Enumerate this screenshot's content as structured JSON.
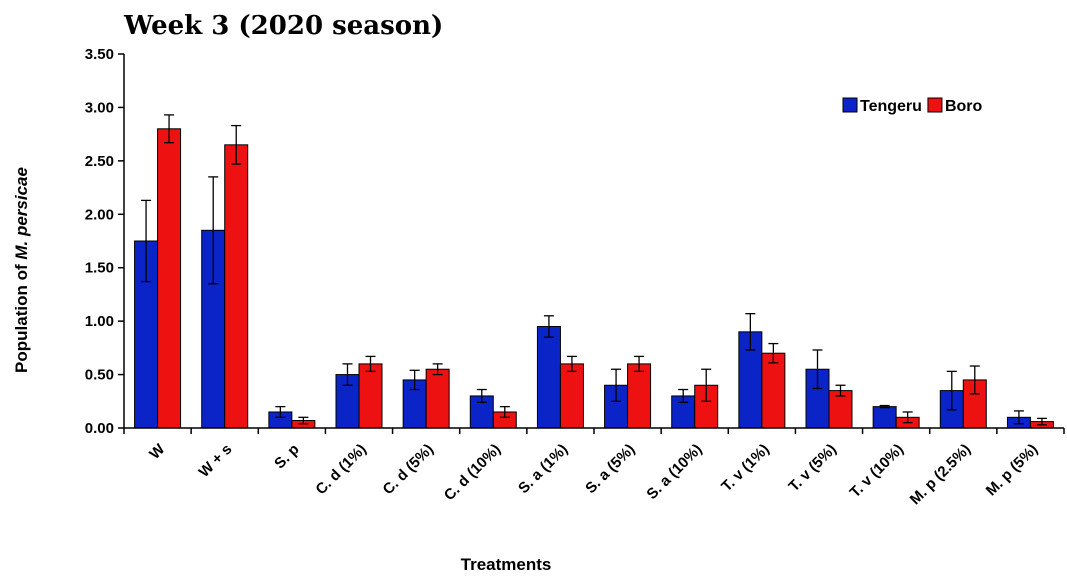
{
  "chart_data": {
    "type": "bar",
    "title": "Week 3 (2020 season)",
    "xlabel": "Treatments",
    "ylabel_prefix": "Population of ",
    "ylabel_italic": "M. persicae",
    "ylim": [
      0,
      3.5
    ],
    "yticks": [
      "0.00",
      "0.50",
      "1.00",
      "1.50",
      "2.00",
      "2.50",
      "3.00",
      "3.50"
    ],
    "ytick_values": [
      0,
      0.5,
      1,
      1.5,
      2,
      2.5,
      3,
      3.5
    ],
    "categories": [
      "W",
      "W + s",
      "S. p",
      "C. d (1%)",
      "C. d (5%)",
      "C. d (10%)",
      "S. a (1%)",
      "S. a (5%)",
      "S. a (10%)",
      "T. v (1%)",
      "T. v (5%)",
      "T. v (10%)",
      "M. p (2.5%)",
      "M. p (5%)"
    ],
    "series": [
      {
        "name": "Tengeru",
        "color": "#0b24c8",
        "values": [
          1.75,
          1.85,
          0.15,
          0.5,
          0.45,
          0.3,
          0.95,
          0.4,
          0.3,
          0.9,
          0.55,
          0.2,
          0.35,
          0.1
        ],
        "errors": [
          0.38,
          0.5,
          0.05,
          0.1,
          0.09,
          0.06,
          0.1,
          0.15,
          0.06,
          0.17,
          0.18,
          0.01,
          0.18,
          0.06
        ]
      },
      {
        "name": "Boro",
        "color": "#ee1111",
        "values": [
          2.8,
          2.65,
          0.07,
          0.6,
          0.55,
          0.15,
          0.6,
          0.6,
          0.4,
          0.7,
          0.35,
          0.1,
          0.45,
          0.06
        ],
        "errors": [
          0.13,
          0.18,
          0.03,
          0.07,
          0.05,
          0.05,
          0.07,
          0.07,
          0.15,
          0.09,
          0.05,
          0.05,
          0.13,
          0.03
        ]
      }
    ],
    "legend": {
      "placement": "top-right"
    },
    "grid": false
  }
}
